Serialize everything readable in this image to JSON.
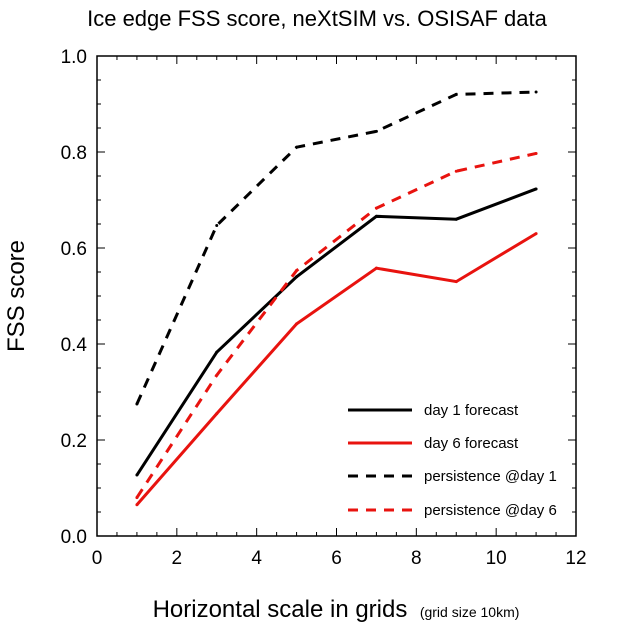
{
  "chart_data": {
    "type": "line",
    "title": "Ice edge FSS score, neXtSIM vs. OSISAF data",
    "xlabel": "Horizontal scale in grids",
    "xlabel_note": "(grid size 10km)",
    "ylabel": "FSS score",
    "xlim": [
      0,
      12
    ],
    "ylim": [
      0,
      1
    ],
    "xticks": [
      0,
      2,
      4,
      6,
      8,
      10,
      12
    ],
    "xtick_labels": [
      "0",
      "2",
      "4",
      "6",
      "8",
      "10",
      "12"
    ],
    "yticks": [
      0,
      0.2,
      0.4,
      0.6,
      0.8,
      1.0
    ],
    "ytick_labels": [
      "0.0",
      "0.2",
      "0.4",
      "0.6",
      "0.8",
      "1.0"
    ],
    "grid": false,
    "legend_position": "bottom-right",
    "x": [
      1,
      3,
      5,
      7,
      9,
      11
    ],
    "series": [
      {
        "name": "day 1 forecast",
        "color": "#000000",
        "dash": "solid",
        "values": [
          0.127,
          0.383,
          0.54,
          0.666,
          0.66,
          0.723
        ]
      },
      {
        "name": "day 6 forecast",
        "color": "#e8130f",
        "dash": "solid",
        "values": [
          0.065,
          0.255,
          0.442,
          0.558,
          0.53,
          0.63
        ]
      },
      {
        "name": "persistence @day 1",
        "color": "#000000",
        "dash": "dashed",
        "values": [
          0.275,
          0.647,
          0.81,
          0.843,
          0.92,
          0.925
        ]
      },
      {
        "name": "persistence @day 6",
        "color": "#e8130f",
        "dash": "dashed",
        "values": [
          0.08,
          0.335,
          0.553,
          0.683,
          0.76,
          0.797
        ]
      }
    ]
  }
}
